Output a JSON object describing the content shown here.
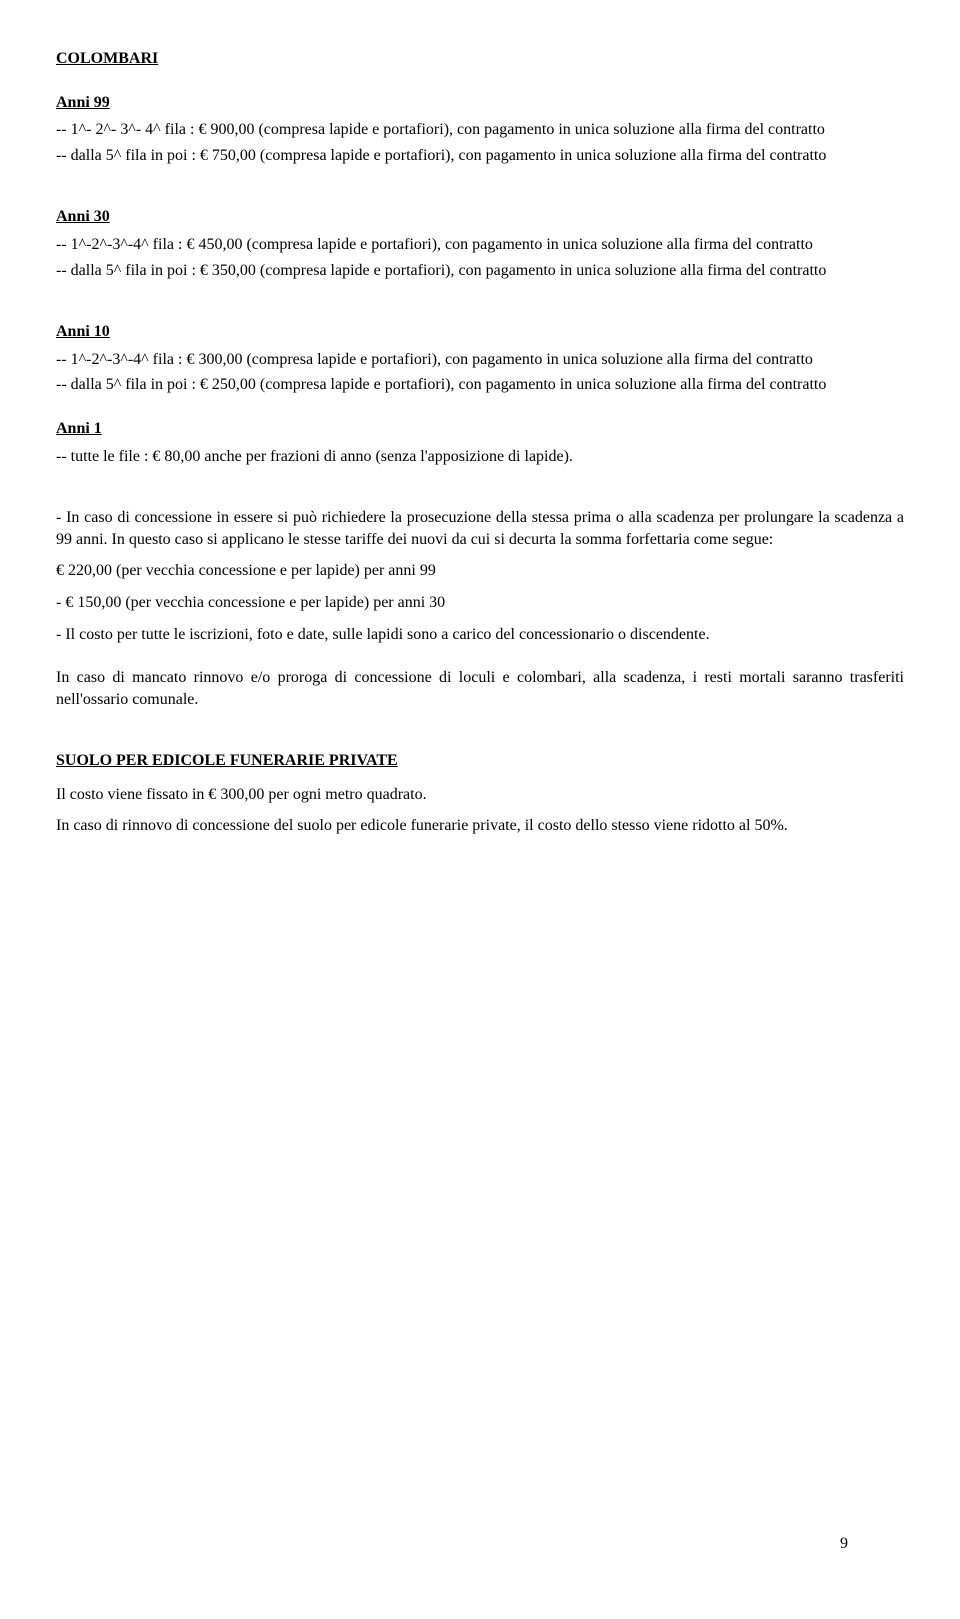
{
  "colombari": {
    "title": "COLOMBARI",
    "anni99": {
      "heading": "Anni 99",
      "line1": "-- 1^- 2^- 3^- 4^  fila :    € 900,00  (compresa lapide e portafiori), con pagamento in unica soluzione alla firma del contratto",
      "line2": "-- dalla   5^   fila in poi :  € 750,00  (compresa lapide e portafiori), con pagamento in unica soluzione alla firma del contratto"
    },
    "anni30": {
      "heading": "Anni 30",
      "line1": "--  1^-2^-3^-4^  fila :       € 450,00 (compresa lapide e portafiori), con pagamento in unica soluzione alla firma del contratto",
      "line2": "--  dalla  5^ fila in poi : € 350,00 (compresa lapide e portafiori), con pagamento in unica soluzione alla firma del contratto"
    },
    "anni10": {
      "heading": "Anni 10",
      "line1": "--  1^-2^-3^-4^  fila :      € 300,00  (compresa lapide e portafiori), con pagamento in unica soluzione alla firma del contratto",
      "line2": "--  dalla  5^ fila in poi : € 250,00  (compresa lapide e portafiori), con pagamento in unica soluzione alla firma del contratto"
    },
    "anni1": {
      "heading": "Anni  1",
      "line1": "-- tutte le file :   €  80,00    anche per frazioni di anno (senza l'apposizione di lapide)."
    }
  },
  "concessione": {
    "intro": "- In   caso di concessione in essere si può richiedere la prosecuzione della stessa    prima o alla scadenza per prolungare la scadenza a 99 anni. In questo caso si applicano le stesse tariffe dei nuovi da  cui   si   decurta la somma  forfettaria  come segue:",
    "bullet1": "€  220,00  (per   vecchia concessione e per lapide) per anni 99",
    "bullet2": "-          €  150,00  (per   vecchia concessione e per lapide) per anni 30",
    "bullet3": "- Il costo per tutte le iscrizioni, foto e date, sulle lapidi sono a carico del concessionario o discendente.",
    "rinnovo": "In caso di mancato rinnovo e/o proroga di concessione di loculi e colombari, alla scadenza, i resti mortali saranno  trasferiti nell'ossario comunale."
  },
  "suolo": {
    "title": "SUOLO    PER    EDICOLE    FUNERARIE    PRIVATE",
    "line1": "Il costo viene fissato in  € 300,00   per ogni metro quadrato.",
    "line2": "In caso di rinnovo di concessione del suolo per edicole funerarie private, il costo dello stesso viene ridotto al 50%."
  },
  "page_number": "9"
}
